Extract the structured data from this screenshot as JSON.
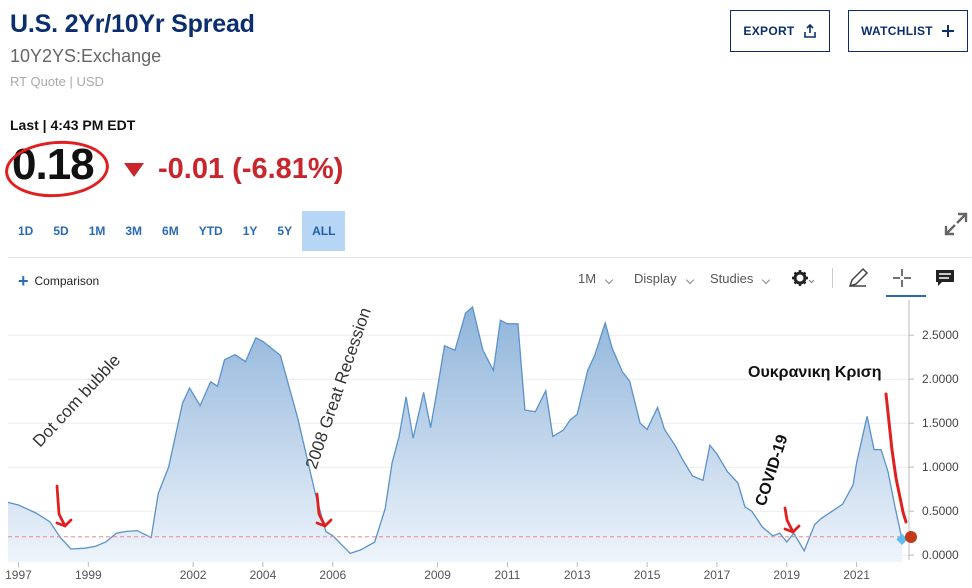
{
  "header": {
    "title": "U.S. 2Yr/10Yr Spread",
    "symbol": "10Y2YS:Exchange",
    "quote_meta": "RT Quote | USD",
    "export_label": "EXPORT",
    "watchlist_label": "WATCHLIST"
  },
  "quote": {
    "last_label": "Last | 4:43 PM EDT",
    "last_price": "0.18",
    "change": "-0.01 (-6.81%)"
  },
  "ranges": [
    "1D",
    "5D",
    "1M",
    "3M",
    "6M",
    "YTD",
    "1Y",
    "5Y",
    "ALL"
  ],
  "active_range": "ALL",
  "toolbar": {
    "comparison_label": "Comparison",
    "interval_label": "1M",
    "display_label": "Display",
    "studies_label": "Studies"
  },
  "annotations": {
    "dotcom": "Dot com bubble",
    "recession": "2008 Great Recession",
    "covid": "COVID-19",
    "ukraine": "Ουκρανικη Κριση"
  },
  "colors": {
    "title": "#0b2e6e",
    "negative": "#c8262c",
    "line": "#5b92c9",
    "active_range_bg": "#b7d6f5",
    "annotation_red": "#e02020"
  },
  "chart_data": {
    "type": "area",
    "ylim": [
      -0.1,
      2.9
    ],
    "yticks": [
      0.0,
      0.5,
      1.0,
      1.5,
      2.0,
      2.5
    ],
    "ytick_labels": [
      "0.0000",
      "0.5000",
      "1.0000",
      "1.5000",
      "2.0000",
      "2.5000"
    ],
    "xlim": [
      1996.7,
      2022.5
    ],
    "xticks": [
      1997,
      1999,
      2002,
      2004,
      2006,
      2009,
      2011,
      2013,
      2015,
      2017,
      2019,
      2021
    ],
    "xtick_labels": [
      "1997",
      "1999",
      "2002",
      "2004",
      "2006",
      "2009",
      "2011",
      "2013",
      "2015",
      "2017",
      "2019",
      "2021"
    ],
    "reference_line": 0.21,
    "last_value": 0.18,
    "x": [
      1996.7,
      1997.0,
      1997.5,
      1997.9,
      1998.2,
      1998.5,
      1998.9,
      1999.2,
      1999.5,
      1999.8,
      2000.1,
      2000.4,
      2000.8,
      2001.0,
      2001.3,
      2001.7,
      2001.9,
      2002.2,
      2002.5,
      2002.7,
      2002.9,
      2003.2,
      2003.5,
      2003.8,
      2004.0,
      2004.5,
      2005.0,
      2005.5,
      2005.8,
      2006.0,
      2006.3,
      2006.5,
      2006.8,
      2007.2,
      2007.5,
      2007.7,
      2007.9,
      2008.1,
      2008.3,
      2008.6,
      2008.8,
      2009.0,
      2009.2,
      2009.5,
      2009.8,
      2010.0,
      2010.3,
      2010.6,
      2010.8,
      2011.0,
      2011.3,
      2011.5,
      2011.8,
      2012.1,
      2012.3,
      2012.6,
      2012.8,
      2013.0,
      2013.3,
      2013.5,
      2013.8,
      2014.0,
      2014.3,
      2014.5,
      2014.8,
      2015.0,
      2015.3,
      2015.5,
      2015.8,
      2016.0,
      2016.3,
      2016.6,
      2016.8,
      2017.0,
      2017.3,
      2017.6,
      2017.8,
      2018.0,
      2018.3,
      2018.6,
      2018.8,
      2019.0,
      2019.2,
      2019.5,
      2019.8,
      2020.0,
      2020.3,
      2020.6,
      2020.9,
      2021.0,
      2021.3,
      2021.5,
      2021.7,
      2021.9,
      2022.1,
      2022.3
    ],
    "y": [
      0.6,
      0.57,
      0.48,
      0.38,
      0.2,
      0.07,
      0.08,
      0.1,
      0.15,
      0.25,
      0.27,
      0.28,
      0.2,
      0.7,
      1.0,
      1.73,
      1.9,
      1.7,
      1.97,
      1.92,
      2.22,
      2.28,
      2.2,
      2.47,
      2.43,
      2.27,
      1.55,
      0.7,
      0.27,
      0.22,
      0.1,
      0.02,
      0.06,
      0.15,
      0.53,
      1.05,
      1.35,
      1.8,
      1.33,
      1.85,
      1.45,
      1.9,
      2.38,
      2.33,
      2.75,
      2.82,
      2.33,
      2.1,
      2.67,
      2.63,
      2.63,
      1.65,
      1.63,
      1.87,
      1.35,
      1.42,
      1.54,
      1.6,
      2.1,
      2.27,
      2.64,
      2.35,
      2.08,
      1.98,
      1.5,
      1.43,
      1.68,
      1.43,
      1.25,
      1.1,
      0.9,
      0.85,
      1.25,
      1.15,
      0.95,
      0.82,
      0.55,
      0.5,
      0.32,
      0.22,
      0.25,
      0.15,
      0.25,
      0.05,
      0.35,
      0.42,
      0.5,
      0.58,
      0.8,
      1.05,
      1.58,
      1.2,
      1.2,
      0.95,
      0.55,
      0.18
    ]
  }
}
